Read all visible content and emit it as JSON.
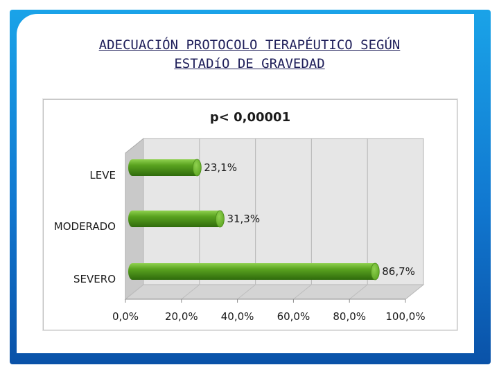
{
  "slide": {
    "title_line1": "ADECUACIÓN PROTOCOLO TERAPÉUTICO SEGÚN",
    "title_line2": "ESTADíO DE GRAVEDAD"
  },
  "colors": {
    "frame_top": "#1aa3e8",
    "frame_bottom": "#0a52a8",
    "bar_light": "#8fd14f",
    "bar_mid": "#5aa320",
    "bar_dark": "#2f6b0c",
    "plot_wall": "#e6e6e6",
    "title": "#1f1f5a"
  },
  "chart_data": {
    "type": "bar",
    "orientation": "horizontal",
    "title": "p< 0,00001",
    "categories": [
      "LEVE",
      "MODERADO",
      "SEVERO"
    ],
    "values": [
      23.1,
      31.3,
      86.7
    ],
    "value_labels": [
      "23,1%",
      "31,3%",
      "86,7%"
    ],
    "xlim": [
      0,
      100
    ],
    "x_ticks": [
      0,
      20,
      40,
      60,
      80,
      100
    ],
    "x_tick_labels": [
      "0,0%",
      "20,0%",
      "40,0%",
      "60,0%",
      "80,0%",
      "100,0%"
    ],
    "xlabel": "",
    "ylabel": "",
    "grid": true,
    "legend": "none",
    "style": "3d-cylinder"
  }
}
